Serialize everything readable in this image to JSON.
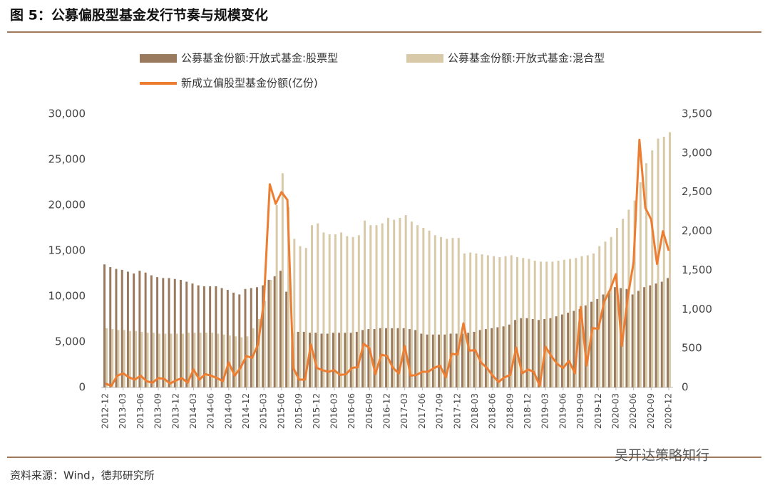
{
  "chart_data": {
    "type": "bar_line",
    "title": "图 5：公募偏股型基金发行节奏与规模变化",
    "source": "资料来源：Wind，德邦研究所",
    "watermark": "吴开达策略知行",
    "categories": [
      "2012-12",
      null,
      null,
      "2013-03",
      null,
      null,
      "2013-06",
      null,
      null,
      "2013-09",
      null,
      null,
      "2013-12",
      null,
      null,
      "2014-03",
      null,
      null,
      "2014-06",
      null,
      null,
      "2014-09",
      null,
      null,
      "2014-12",
      null,
      null,
      "2015-03",
      null,
      null,
      "2015-06",
      null,
      null,
      "2015-09",
      null,
      null,
      "2015-12",
      null,
      null,
      "2016-03",
      null,
      null,
      "2016-06",
      null,
      null,
      "2016-09",
      null,
      null,
      "2016-12",
      null,
      null,
      "2017-03",
      null,
      null,
      "2017-06",
      null,
      null,
      "2017-09",
      null,
      null,
      "2017-12",
      null,
      null,
      "2018-03",
      null,
      null,
      "2018-06",
      null,
      null,
      "2018-09",
      null,
      null,
      "2018-12",
      null,
      null,
      "2019-03",
      null,
      null,
      "2019-06",
      null,
      null,
      "2019-09",
      null,
      null,
      "2019-12",
      null,
      null,
      "2020-03",
      null,
      null,
      "2020-06",
      null,
      null,
      "2020-09",
      null,
      null,
      "2020-12"
    ],
    "series": [
      {
        "name": "公募基金份额:开放式基金:股票型",
        "color": "#9a7a5e",
        "kind": "bar",
        "values": [
          13500,
          13200,
          13000,
          12900,
          12700,
          12500,
          12800,
          12600,
          12300,
          12100,
          12000,
          12000,
          11900,
          11800,
          11600,
          11400,
          11200,
          11100,
          11100,
          11100,
          10900,
          10700,
          10400,
          10200,
          10800,
          10900,
          11000,
          11200,
          11800,
          12200,
          12800,
          10500,
          6000,
          6100,
          6100,
          6000,
          6000,
          5900,
          5900,
          6000,
          6000,
          6000,
          6000,
          6100,
          6300,
          6400,
          6400,
          6500,
          6500,
          6500,
          6500,
          6500,
          6400,
          6300,
          5900,
          5800,
          5800,
          5800,
          5800,
          5900,
          5900,
          5900,
          6000,
          6100,
          6300,
          6400,
          6500,
          6600,
          6700,
          6900,
          7400,
          7600,
          7600,
          7500,
          7400,
          7500,
          7600,
          7800,
          8000,
          8200,
          8400,
          8600,
          9000,
          9400,
          9700,
          10200,
          10600,
          11000,
          10900,
          10800,
          10200,
          10600,
          11000,
          11200,
          11400,
          11600,
          12000
        ]
      },
      {
        "name": "公募基金份额:开放式基金:混合型",
        "color": "#d8caa8",
        "kind": "bar",
        "values": [
          6500,
          6400,
          6300,
          6300,
          6200,
          6200,
          6100,
          6000,
          6000,
          5900,
          5900,
          5900,
          5900,
          5900,
          6000,
          6000,
          6000,
          6000,
          6000,
          5900,
          5800,
          5700,
          5600,
          5500,
          5600,
          6500,
          7500,
          9500,
          11800,
          20000,
          23500,
          19800,
          16300,
          15500,
          15300,
          17800,
          18000,
          17000,
          16800,
          16800,
          17000,
          16600,
          16500,
          16700,
          18300,
          17800,
          17800,
          18000,
          18600,
          18400,
          18600,
          18900,
          18200,
          17800,
          17500,
          17200,
          16700,
          16500,
          16300,
          16400,
          16400,
          14700,
          14800,
          14700,
          14600,
          14500,
          14400,
          14300,
          14400,
          14500,
          14300,
          14200,
          14100,
          13900,
          13800,
          13800,
          13800,
          13900,
          14000,
          14100,
          14200,
          14400,
          14500,
          14700,
          15500,
          16000,
          16500,
          17500,
          18500,
          19500,
          20500,
          22500,
          24600,
          26000,
          27300,
          27500,
          28000
        ]
      },
      {
        "name": "新成立偏股型基金份额(亿份)",
        "color": "#ed7d31",
        "kind": "line",
        "axis": "y2",
        "values": [
          50,
          20,
          150,
          180,
          130,
          100,
          150,
          80,
          60,
          120,
          110,
          50,
          90,
          120,
          60,
          230,
          100,
          170,
          150,
          120,
          80,
          320,
          150,
          250,
          400,
          380,
          550,
          1100,
          2600,
          2350,
          2500,
          2400,
          250,
          100,
          100,
          550,
          250,
          220,
          200,
          220,
          160,
          170,
          250,
          260,
          560,
          500,
          170,
          420,
          400,
          250,
          180,
          530,
          150,
          160,
          200,
          200,
          250,
          280,
          130,
          430,
          420,
          820,
          470,
          480,
          320,
          250,
          150,
          70,
          130,
          160,
          510,
          180,
          230,
          200,
          20,
          520,
          400,
          300,
          250,
          340,
          180,
          1030,
          280,
          760,
          750,
          1100,
          1250,
          1450,
          530,
          1150,
          1600,
          3170,
          2300,
          2150,
          1580,
          2000,
          1750
        ]
      }
    ],
    "ylim": [
      0,
      30000
    ],
    "yticks": [
      0,
      {
        "value": 5000,
        "label": "5,000"
      },
      {
        "value": 10000,
        "label": "10,000"
      },
      {
        "value": 15000,
        "label": "15,000"
      },
      {
        "value": 20000,
        "label": "20,000"
      },
      {
        "value": 25000,
        "label": "25,000"
      },
      {
        "value": 30000,
        "label": "30,000"
      }
    ],
    "y2lim": [
      0,
      3500
    ],
    "y2ticks": [
      0,
      500,
      {
        "value": 1000,
        "label": "1,000"
      },
      {
        "value": 1500,
        "label": "1,500"
      },
      {
        "value": 2000,
        "label": "2,000"
      },
      {
        "value": 2500,
        "label": "2,500"
      },
      {
        "value": 3000,
        "label": "3,000"
      },
      {
        "value": 3500,
        "label": "3,500"
      }
    ]
  }
}
